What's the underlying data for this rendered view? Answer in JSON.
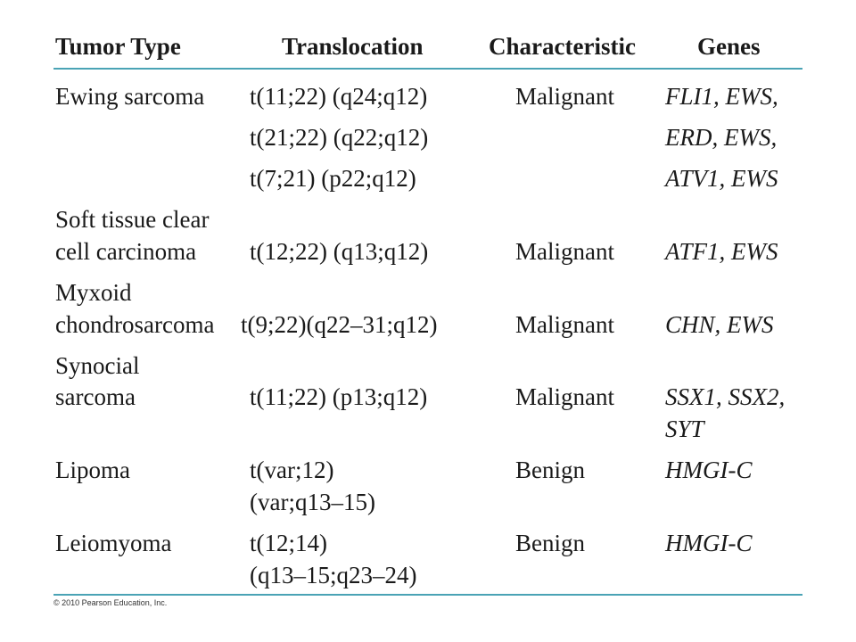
{
  "headers": {
    "tumor_type": "Tumor Type",
    "translocation": "Translocation",
    "characteristic": "Characteristic",
    "genes": "Genes"
  },
  "rows": [
    {
      "tumor": [
        "Ewing sarcoma"
      ],
      "translocation": [
        "t(11;22) (q24;q12)",
        "t(21;22) (q22;q12)",
        "t(7;21) (p22;q12)"
      ],
      "characteristic": "Malignant",
      "genes": [
        "FLI1, EWS,",
        "ERD, EWS,",
        "ATV1, EWS"
      ]
    },
    {
      "tumor": [
        "Soft tissue clear",
        "cell carcinoma"
      ],
      "translocation": [
        "t(12;22) (q13;q12)"
      ],
      "characteristic": "Malignant",
      "genes": [
        "ATF1, EWS"
      ]
    },
    {
      "tumor": [
        "Myxoid",
        "chondrosarcoma"
      ],
      "translocation": [
        "t(9;22)(q22–31;q12)"
      ],
      "characteristic": "Malignant",
      "genes": [
        "CHN, EWS"
      ]
    },
    {
      "tumor": [
        "Synocial",
        "sarcoma"
      ],
      "translocation": [
        "t(11;22) (p13;q12)"
      ],
      "characteristic": "Malignant",
      "genes": [
        "SSX1, SSX2,",
        "SYT"
      ]
    },
    {
      "tumor": [
        "Lipoma"
      ],
      "translocation": [
        "t(var;12)",
        "(var;q13–15)"
      ],
      "characteristic": "Benign",
      "genes": [
        "HMGI-C"
      ]
    },
    {
      "tumor": [
        "Leiomyoma"
      ],
      "translocation": [
        "t(12;14)",
        "(q13–15;q23–24)"
      ],
      "characteristic": "Benign",
      "genes": [
        "HMGI-C"
      ]
    }
  ],
  "footer": {
    "copyright": "© 2010 Pearson Education, Inc."
  },
  "colors": {
    "rule": "#4aa3b5",
    "text": "#1a1a1a"
  }
}
